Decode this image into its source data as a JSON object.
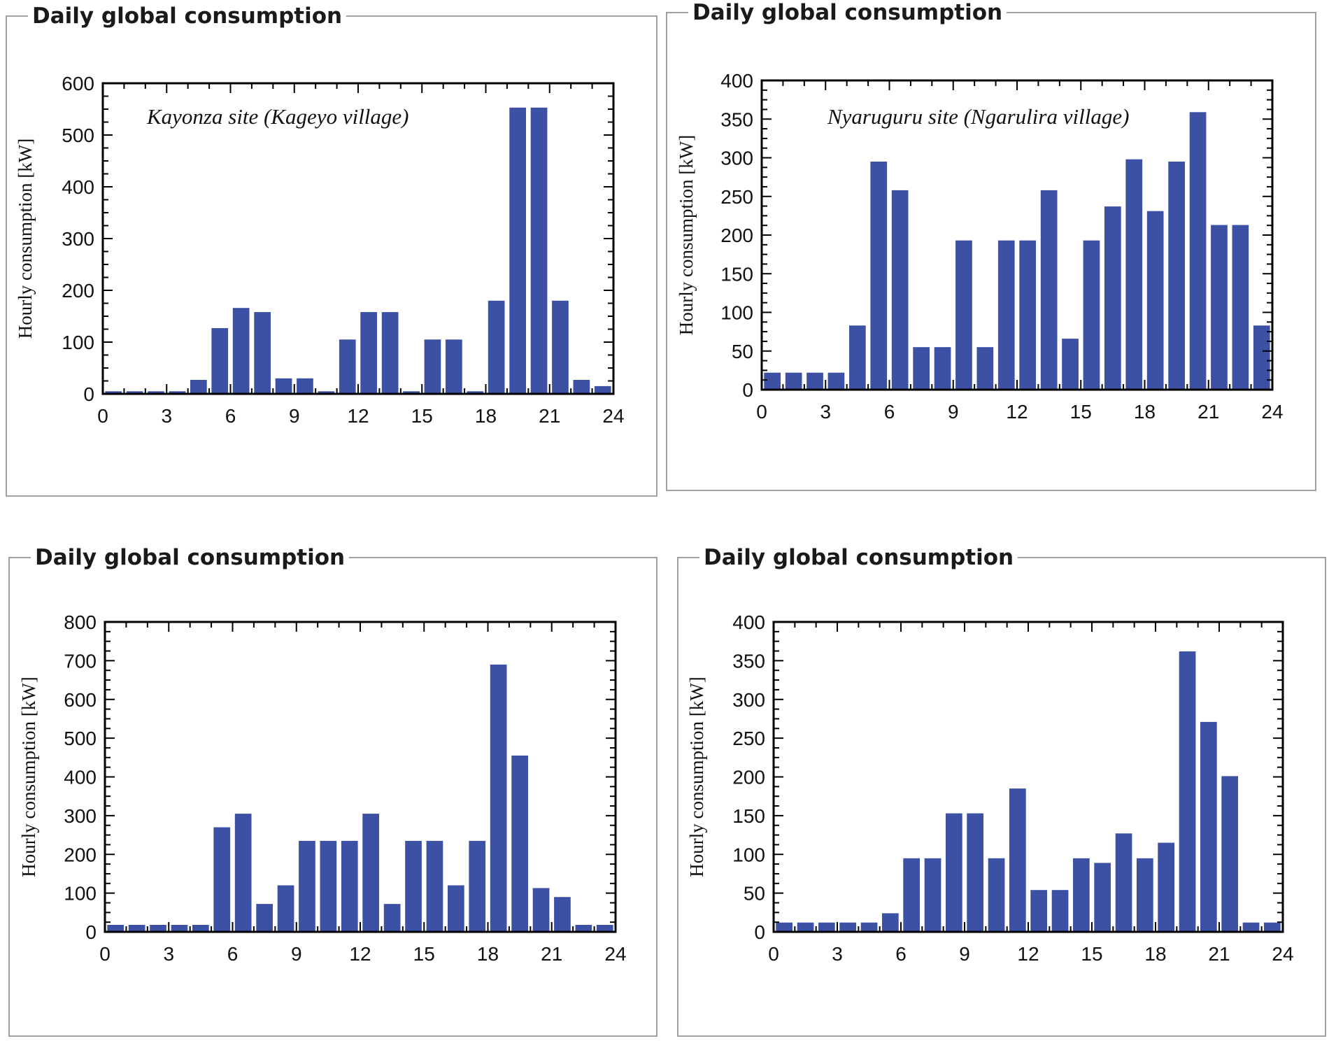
{
  "colors": {
    "bar": "#3c51a4",
    "axis": "#000000",
    "frame": "#a0a0a0"
  },
  "chart_data": [
    {
      "type": "bar",
      "title": "Daily global consumption",
      "annotation": "Kayonza site (Kageyo village)",
      "ylabel": "Hourly consumption [kW]",
      "xlabel": "",
      "xlim": [
        0,
        24
      ],
      "ylim": [
        0,
        600
      ],
      "xticks": [
        0,
        3,
        6,
        9,
        12,
        15,
        18,
        21,
        24
      ],
      "yticks": [
        0,
        100,
        200,
        300,
        400,
        500,
        600
      ],
      "hours": [
        0,
        1,
        2,
        3,
        4,
        5,
        6,
        7,
        8,
        9,
        10,
        11,
        12,
        13,
        14,
        15,
        16,
        17,
        18,
        19,
        20,
        21,
        22,
        23
      ],
      "values": [
        5,
        5,
        5,
        5,
        27,
        127,
        166,
        158,
        30,
        30,
        5,
        105,
        158,
        158,
        5,
        105,
        105,
        5,
        180,
        553,
        553,
        180,
        27,
        15
      ]
    },
    {
      "type": "bar",
      "title": "Daily global consumption",
      "annotation": "Nyaruguru site (Ngarulira village)",
      "ylabel": "Hourly consumption [kW]",
      "xlabel": "",
      "xlim": [
        0,
        24
      ],
      "ylim": [
        0,
        400
      ],
      "xticks": [
        0,
        3,
        6,
        9,
        12,
        15,
        18,
        21,
        24
      ],
      "yticks": [
        0,
        50,
        100,
        150,
        200,
        250,
        300,
        350,
        400
      ],
      "hours": [
        0,
        1,
        2,
        3,
        4,
        5,
        6,
        7,
        8,
        9,
        10,
        11,
        12,
        13,
        14,
        15,
        16,
        17,
        18,
        19,
        20,
        21,
        22,
        23
      ],
      "values": [
        22,
        22,
        22,
        22,
        83,
        295,
        258,
        55,
        55,
        193,
        55,
        193,
        193,
        258,
        66,
        193,
        237,
        298,
        231,
        295,
        359,
        213,
        213,
        83
      ]
    },
    {
      "type": "bar",
      "title": "Daily global consumption",
      "annotation": "",
      "ylabel": "Hourly consumption [kW]",
      "xlabel": "",
      "xlim": [
        0,
        24
      ],
      "ylim": [
        0,
        800
      ],
      "xticks": [
        0,
        3,
        6,
        9,
        12,
        15,
        18,
        21,
        24
      ],
      "yticks": [
        0,
        100,
        200,
        300,
        400,
        500,
        600,
        700,
        800
      ],
      "hours": [
        0,
        1,
        2,
        3,
        4,
        5,
        6,
        7,
        8,
        9,
        10,
        11,
        12,
        13,
        14,
        15,
        16,
        17,
        18,
        19,
        20,
        21,
        22,
        23
      ],
      "values": [
        18,
        18,
        18,
        18,
        18,
        270,
        305,
        72,
        120,
        235,
        235,
        235,
        305,
        72,
        235,
        235,
        120,
        235,
        690,
        455,
        113,
        90,
        18,
        18
      ]
    },
    {
      "type": "bar",
      "title": "Daily global consumption",
      "annotation": "",
      "ylabel": "Hourly consumption [kW]",
      "xlabel": "",
      "xlim": [
        0,
        24
      ],
      "ylim": [
        0,
        400
      ],
      "xticks": [
        0,
        3,
        6,
        9,
        12,
        15,
        18,
        21,
        24
      ],
      "yticks": [
        0,
        50,
        100,
        150,
        200,
        250,
        300,
        350,
        400
      ],
      "hours": [
        0,
        1,
        2,
        3,
        4,
        5,
        6,
        7,
        8,
        9,
        10,
        11,
        12,
        13,
        14,
        15,
        16,
        17,
        18,
        19,
        20,
        21,
        22,
        23
      ],
      "values": [
        12,
        12,
        12,
        12,
        12,
        24,
        95,
        95,
        153,
        153,
        95,
        185,
        54,
        54,
        95,
        89,
        127,
        95,
        115,
        362,
        271,
        201,
        12,
        12
      ]
    }
  ]
}
